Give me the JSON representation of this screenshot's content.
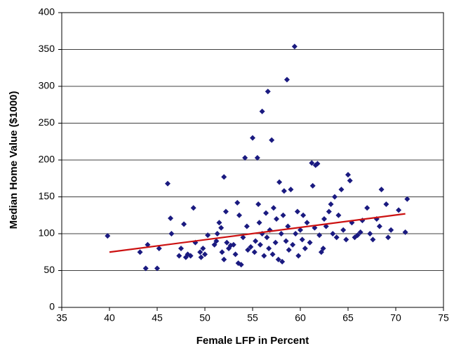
{
  "chart_data": {
    "type": "scatter",
    "xlabel": "Female LFP in Percent",
    "ylabel": "Median Home Value ($1000)",
    "xlim": [
      35,
      75
    ],
    "xticks": [
      35,
      40,
      45,
      50,
      55,
      60,
      65,
      70,
      75
    ],
    "ylim": [
      0,
      400
    ],
    "yticks": [
      0,
      50,
      100,
      150,
      200,
      250,
      300,
      350,
      400
    ],
    "grid": true,
    "color": "#1a1a80",
    "x": [
      39.8,
      43.2,
      43.8,
      44,
      45,
      45.2,
      46.1,
      46.4,
      46.5,
      47.3,
      47.5,
      47.8,
      48,
      48.2,
      48.5,
      48.8,
      49,
      49.5,
      49.6,
      49.8,
      50,
      50.3,
      51,
      51.2,
      51.3,
      51.5,
      51.7,
      51.8,
      52,
      52.2,
      52.3,
      52,
      52.5,
      52.7,
      53,
      53.2,
      53.4,
      53.5,
      53.6,
      53.8,
      54,
      54.2,
      54.4,
      54.5,
      54.8,
      55,
      55.2,
      55.3,
      55.5,
      55.6,
      55.7,
      55.8,
      56,
      56,
      56.2,
      56.4,
      56.5,
      56.6,
      56.7,
      56.8,
      57,
      57.1,
      57.2,
      57.4,
      57.5,
      57.7,
      57.8,
      58,
      58.1,
      58.2,
      58.3,
      58.5,
      58.6,
      58.7,
      58.8,
      59,
      59.2,
      59.4,
      59.5,
      59.7,
      59.8,
      60,
      60.2,
      60.3,
      60.5,
      60.7,
      61,
      61.2,
      61.3,
      61.5,
      61.6,
      61.8,
      62,
      62.2,
      62.4,
      62.5,
      62.7,
      63,
      63.2,
      63.4,
      63.6,
      63.8,
      64,
      64.3,
      64.5,
      64.8,
      65,
      65.2,
      65.4,
      65.7,
      66,
      66.3,
      66.5,
      67,
      67.3,
      67.6,
      68,
      68.3,
      68.5,
      69,
      69.2,
      69.5,
      70.3,
      71,
      71.2
    ],
    "y": [
      97,
      75,
      53,
      85,
      53,
      80,
      168,
      121,
      100,
      70,
      80,
      113,
      68,
      72,
      70,
      135,
      88,
      75,
      68,
      80,
      72,
      98,
      85,
      90,
      100,
      115,
      108,
      75,
      177,
      130,
      88,
      65,
      80,
      84,
      85,
      72,
      142,
      60,
      125,
      58,
      95,
      203,
      110,
      78,
      82,
      230,
      75,
      90,
      203,
      140,
      115,
      85,
      266,
      100,
      70,
      128,
      95,
      293,
      80,
      105,
      227,
      72,
      135,
      88,
      120,
      65,
      170,
      100,
      62,
      125,
      158,
      90,
      309,
      110,
      78,
      160,
      85,
      354,
      100,
      130,
      70,
      105,
      92,
      125,
      80,
      115,
      88,
      196,
      165,
      108,
      193,
      195,
      98,
      75,
      80,
      120,
      110,
      130,
      140,
      100,
      150,
      95,
      125,
      160,
      105,
      92,
      180,
      172,
      115,
      95,
      98,
      102,
      118,
      135,
      100,
      92,
      120,
      110,
      160,
      140,
      95,
      105,
      132,
      102,
      147
    ],
    "trend": {
      "x": [
        40,
        71
      ],
      "y": [
        75,
        127
      ],
      "color": "#cc1111"
    }
  }
}
